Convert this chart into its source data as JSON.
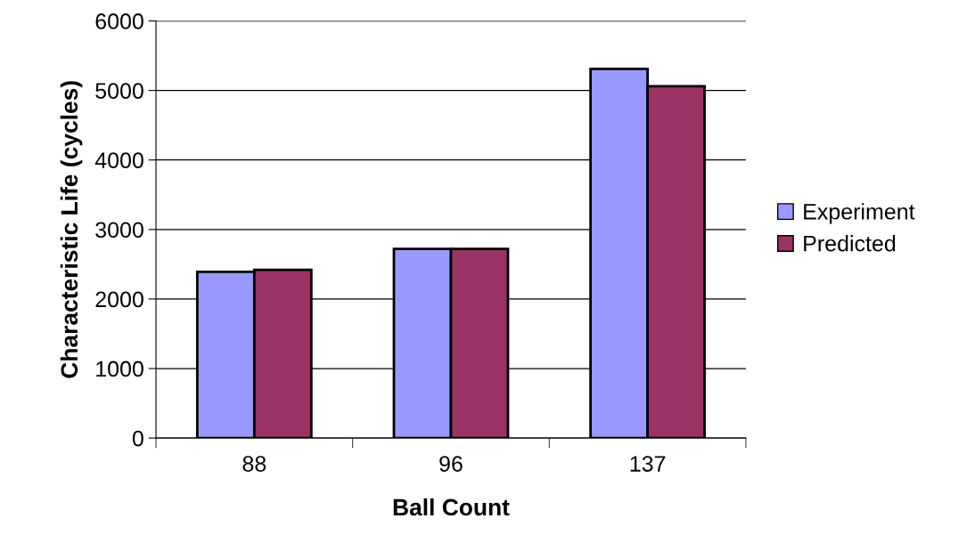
{
  "chart_data": {
    "type": "bar",
    "xlabel": "Ball Count",
    "ylabel": "Characteristic Life (cycles)",
    "categories": [
      "88",
      "96",
      "137"
    ],
    "series": [
      {
        "name": "Experiment",
        "color": "#9999ff",
        "values": [
          2390,
          2720,
          5310
        ]
      },
      {
        "name": "Predicted",
        "color": "#993366",
        "values": [
          2420,
          2720,
          5060
        ]
      }
    ],
    "ylim": [
      0,
      6000
    ],
    "yticks": [
      0,
      1000,
      2000,
      3000,
      4000,
      5000,
      6000
    ],
    "grid": "y",
    "legend": "right"
  }
}
